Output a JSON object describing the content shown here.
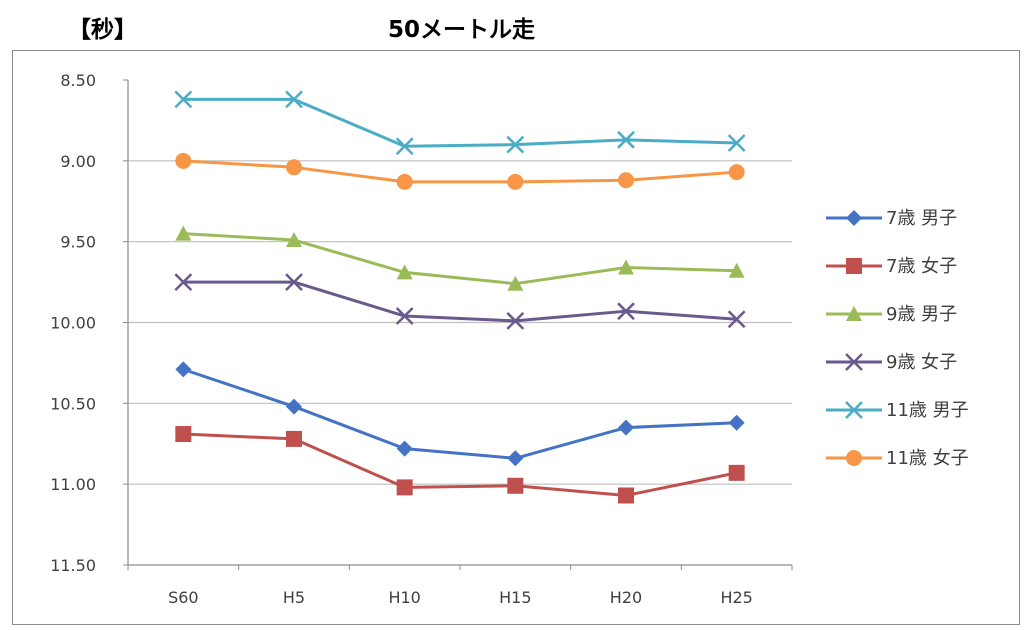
{
  "unit_label": "【秒】",
  "chart_data": {
    "type": "line",
    "title": "50メートル走",
    "ylabel": "【秒】",
    "xlabel": "",
    "categories": [
      "S60",
      "H5",
      "H10",
      "H15",
      "H20",
      "H25"
    ],
    "y_ticks": [
      "8.50",
      "9.00",
      "9.50",
      "10.00",
      "10.50",
      "11.00",
      "11.50"
    ],
    "ylim": [
      8.5,
      11.5
    ],
    "y_inverted": true,
    "grid": true,
    "legend_position": "right",
    "series": [
      {
        "name": "7歳 男子",
        "color": "#4472c4",
        "marker": "diamond",
        "values": [
          10.29,
          10.52,
          10.78,
          10.84,
          10.65,
          10.62
        ]
      },
      {
        "name": "7歳 女子",
        "color": "#c0504d",
        "marker": "square",
        "values": [
          10.69,
          10.72,
          11.02,
          11.01,
          11.07,
          10.93
        ]
      },
      {
        "name": "9歳 男子",
        "color": "#9bbb59",
        "marker": "triangle",
        "values": [
          9.45,
          9.49,
          9.69,
          9.76,
          9.66,
          9.68
        ]
      },
      {
        "name": "9歳 女子",
        "color": "#6a5a8c",
        "marker": "x",
        "values": [
          9.75,
          9.75,
          9.96,
          9.99,
          9.93,
          9.98
        ]
      },
      {
        "name": "11歳 男子",
        "color": "#4bacc6",
        "marker": "x",
        "values": [
          8.62,
          8.62,
          8.91,
          8.9,
          8.87,
          8.89
        ]
      },
      {
        "name": "11歳 女子",
        "color": "#f79646",
        "marker": "circle",
        "values": [
          9.0,
          9.04,
          9.13,
          9.13,
          9.12,
          9.07
        ]
      }
    ]
  }
}
